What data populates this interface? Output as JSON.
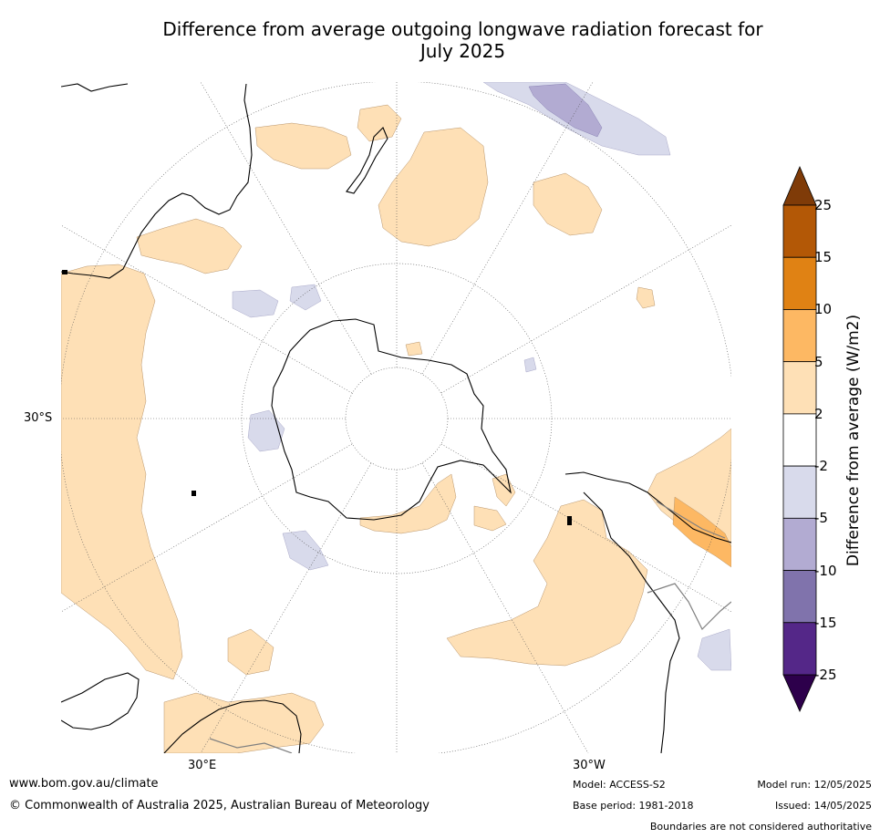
{
  "title": {
    "line1": "Difference from average outgoing longwave radiation forecast for",
    "line2": "July 2025"
  },
  "map": {
    "projection": "south-polar-stereographic",
    "labels": {
      "lat_30s": "30°S",
      "lon_30e": "30°E",
      "lon_30w": "30°W"
    },
    "colors": {
      "land_outline": "#000000",
      "boundary_grey": "#808080",
      "gridline": "#555555"
    }
  },
  "colorbar": {
    "title": "Difference from average (W/m2)",
    "levels": [
      "25",
      "15",
      "10",
      "5",
      "2",
      "-2",
      "-5",
      "-10",
      "-15",
      "-25"
    ],
    "colors": [
      "#b35806",
      "#e08214",
      "#fdb863",
      "#fee0b6",
      "#ffffff",
      "#d8daeb",
      "#b2abd2",
      "#8073ac",
      "#542788"
    ],
    "over_color": "#7f3b08",
    "under_color": "#2d004b"
  },
  "footer": {
    "website": "www.bom.gov.au/climate",
    "copyright": "© Commonwealth of Australia 2025, Australian Bureau of Meteorology",
    "model": "Model: ACCESS-S2",
    "base_period": "Base period: 1981-2018",
    "model_run": "Model run: 12/05/2025",
    "issued": "Issued: 14/05/2025",
    "disclaimer": "Boundaries are not considered authoritative"
  }
}
